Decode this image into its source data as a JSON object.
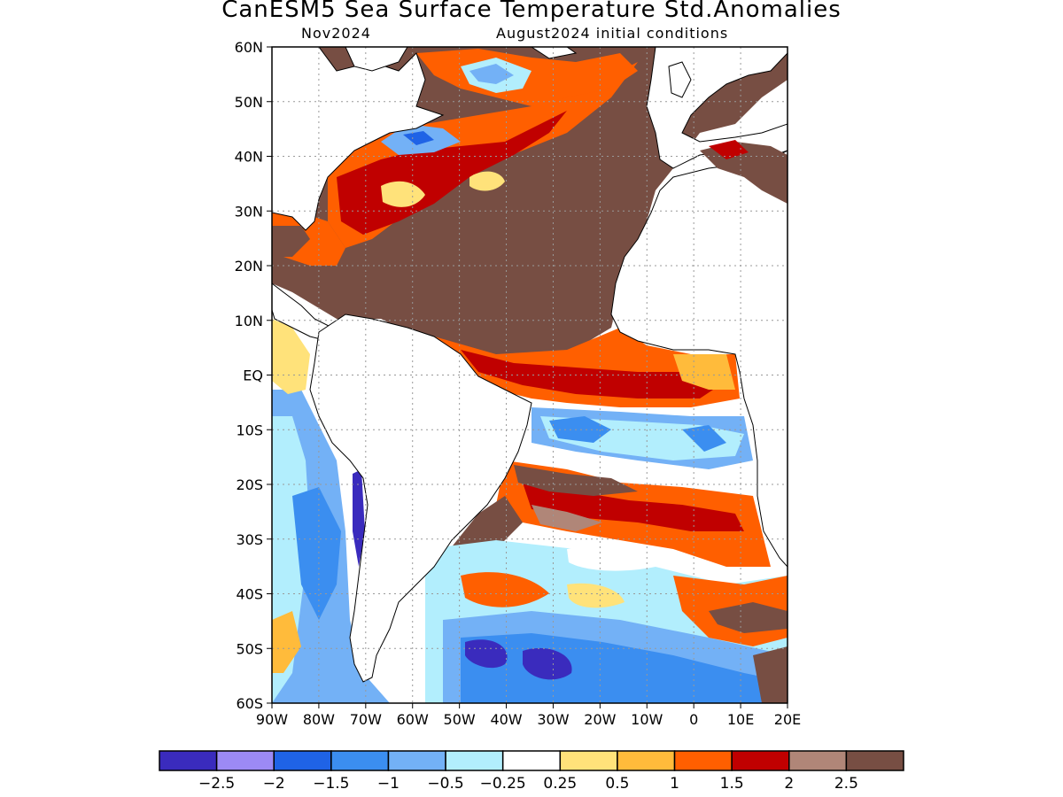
{
  "title": "CanESM5 Sea Surface Temperature Std.Anomalies",
  "subtitle_left": "Nov2024",
  "subtitle_right": "August2024 initial conditions",
  "map": {
    "lon_range": [
      -90,
      20
    ],
    "lat_range": [
      -60,
      60
    ],
    "lat_ticks": [
      {
        "value": 60,
        "label": "60N"
      },
      {
        "value": 50,
        "label": "50N"
      },
      {
        "value": 40,
        "label": "40N"
      },
      {
        "value": 30,
        "label": "30N"
      },
      {
        "value": 20,
        "label": "20N"
      },
      {
        "value": 10,
        "label": "10N"
      },
      {
        "value": 0,
        "label": "EQ"
      },
      {
        "value": -10,
        "label": "10S"
      },
      {
        "value": -20,
        "label": "20S"
      },
      {
        "value": -30,
        "label": "30S"
      },
      {
        "value": -40,
        "label": "40S"
      },
      {
        "value": -50,
        "label": "50S"
      },
      {
        "value": -60,
        "label": "60S"
      }
    ],
    "lon_ticks": [
      {
        "value": -90,
        "label": "90W"
      },
      {
        "value": -80,
        "label": "80W"
      },
      {
        "value": -70,
        "label": "70W"
      },
      {
        "value": -60,
        "label": "60W"
      },
      {
        "value": -50,
        "label": "50W"
      },
      {
        "value": -40,
        "label": "40W"
      },
      {
        "value": -30,
        "label": "30W"
      },
      {
        "value": -20,
        "label": "20W"
      },
      {
        "value": -10,
        "label": "10W"
      },
      {
        "value": 0,
        "label": "0"
      },
      {
        "value": 10,
        "label": "10E"
      },
      {
        "value": 20,
        "label": "20E"
      }
    ]
  },
  "colorbar": {
    "colors": [
      "#3a2bbd",
      "#9c8af5",
      "#1f63e6",
      "#3b8ef0",
      "#73b1f6",
      "#b2eefd",
      "#ffffff",
      "#ffe27a",
      "#ffbb3b",
      "#ff5f00",
      "#c00000",
      "#b08678",
      "#774e43"
    ],
    "labels": [
      "-2.5",
      "-2",
      "-1.5",
      "-1",
      "-0.5",
      "-0.25",
      "0.25",
      "0.5",
      "1",
      "1.5",
      "2",
      "2.5"
    ]
  },
  "colors": {
    "ocean_strong_positive": "#774e43",
    "land": "#ffffff",
    "coastline": "#000000"
  }
}
